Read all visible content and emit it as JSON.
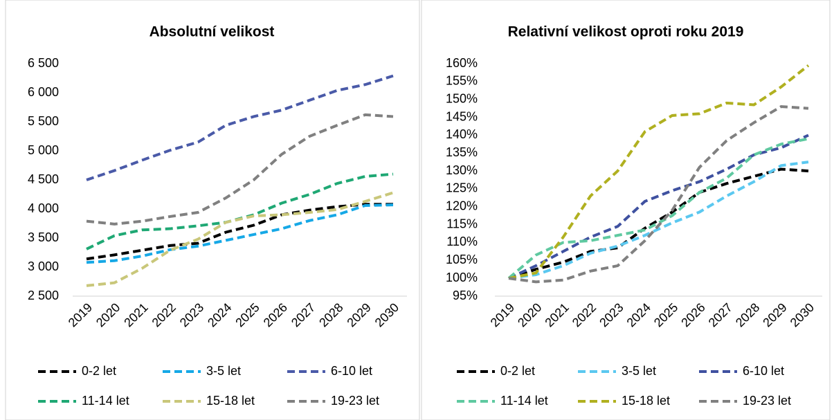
{
  "chart_data": [
    {
      "type": "line",
      "title": "Absolutní velikost",
      "x": [
        "2019",
        "2020",
        "2021",
        "2022",
        "2023",
        "2024",
        "2025",
        "2026",
        "2027",
        "2028",
        "2029",
        "2030"
      ],
      "ylim": [
        2500,
        6500
      ],
      "yticks": [
        {
          "value": 2500,
          "label": "2 500"
        },
        {
          "value": 3000,
          "label": "3 000"
        },
        {
          "value": 3500,
          "label": "3 500"
        },
        {
          "value": 4000,
          "label": "4 000"
        },
        {
          "value": 4500,
          "label": "4 500"
        },
        {
          "value": 5000,
          "label": "5 000"
        },
        {
          "value": 5500,
          "label": "5 500"
        },
        {
          "value": 6000,
          "label": "6 000"
        },
        {
          "value": 6500,
          "label": "6 500"
        }
      ],
      "series": [
        {
          "name": "0-2 let",
          "color": "#000000",
          "values": [
            3140,
            3210,
            3290,
            3370,
            3410,
            3600,
            3720,
            3900,
            3980,
            4040,
            4080,
            4080
          ]
        },
        {
          "name": "3-5 let",
          "color": "#16a8e6",
          "values": [
            3080,
            3110,
            3190,
            3300,
            3360,
            3460,
            3560,
            3660,
            3800,
            3900,
            4060,
            4070
          ]
        },
        {
          "name": "6-10 let",
          "color": "#4a5aa8",
          "values": [
            4500,
            4660,
            4840,
            5010,
            5150,
            5440,
            5590,
            5700,
            5870,
            6040,
            6140,
            6290
          ]
        },
        {
          "name": "11-14 let",
          "color": "#1fa874",
          "values": [
            3310,
            3540,
            3640,
            3660,
            3710,
            3770,
            3900,
            4100,
            4250,
            4440,
            4560,
            4600
          ]
        },
        {
          "name": "15-18 let",
          "color": "#c9c77a",
          "values": [
            2680,
            2730,
            2980,
            3290,
            3480,
            3770,
            3880,
            3900,
            3940,
            3990,
            4130,
            4280
          ]
        },
        {
          "name": "19-23 let",
          "color": "#808080",
          "values": [
            3790,
            3740,
            3790,
            3870,
            3940,
            4190,
            4500,
            4940,
            5250,
            5440,
            5620,
            5590
          ]
        }
      ]
    },
    {
      "type": "line",
      "title": "Relativní velikost oproti roku 2019",
      "x": [
        "2019",
        "2020",
        "2021",
        "2022",
        "2023",
        "2024",
        "2025",
        "2026",
        "2027",
        "2028",
        "2029",
        "2030"
      ],
      "ylim": [
        95,
        160
      ],
      "yticks": [
        {
          "value": 95,
          "label": "95%"
        },
        {
          "value": 100,
          "label": "100%"
        },
        {
          "value": 105,
          "label": "105%"
        },
        {
          "value": 110,
          "label": "110%"
        },
        {
          "value": 115,
          "label": "115%"
        },
        {
          "value": 120,
          "label": "120%"
        },
        {
          "value": 125,
          "label": "125%"
        },
        {
          "value": 130,
          "label": "130%"
        },
        {
          "value": 135,
          "label": "135%"
        },
        {
          "value": 140,
          "label": "140%"
        },
        {
          "value": 145,
          "label": "145%"
        },
        {
          "value": 150,
          "label": "150%"
        },
        {
          "value": 155,
          "label": "155%"
        },
        {
          "value": 160,
          "label": "160%"
        }
      ],
      "series": [
        {
          "name": "0-2 let",
          "color": "#000000",
          "values": [
            100,
            102.5,
            104.5,
            107.5,
            108.5,
            114,
            118.5,
            124,
            126.5,
            128.5,
            130.5,
            130
          ]
        },
        {
          "name": "3-5 let",
          "color": "#5bc8f0",
          "values": [
            100,
            101,
            103.5,
            107,
            109,
            112,
            115.5,
            118.5,
            123,
            127,
            131.5,
            132.5
          ]
        },
        {
          "name": "6-10 let",
          "color": "#3f51a0",
          "values": [
            100,
            103.5,
            107.5,
            111.5,
            114.5,
            121.5,
            124.5,
            127,
            130.5,
            134.5,
            136.5,
            140
          ]
        },
        {
          "name": "11-14 let",
          "color": "#5fc9a0",
          "values": [
            100,
            106.5,
            110,
            110.5,
            112,
            113.5,
            117.5,
            124,
            128,
            134.5,
            137.5,
            139
          ]
        },
        {
          "name": "15-18 let",
          "color": "#b0b020",
          "values": [
            100,
            101.5,
            111.5,
            123,
            130,
            141,
            145.5,
            146,
            149,
            148.5,
            153.5,
            159.5
          ]
        },
        {
          "name": "19-23 let",
          "color": "#808080",
          "values": [
            100,
            99,
            99.5,
            102,
            103.5,
            110.5,
            119,
            131,
            138.5,
            143.5,
            148,
            147.5
          ]
        }
      ]
    }
  ]
}
